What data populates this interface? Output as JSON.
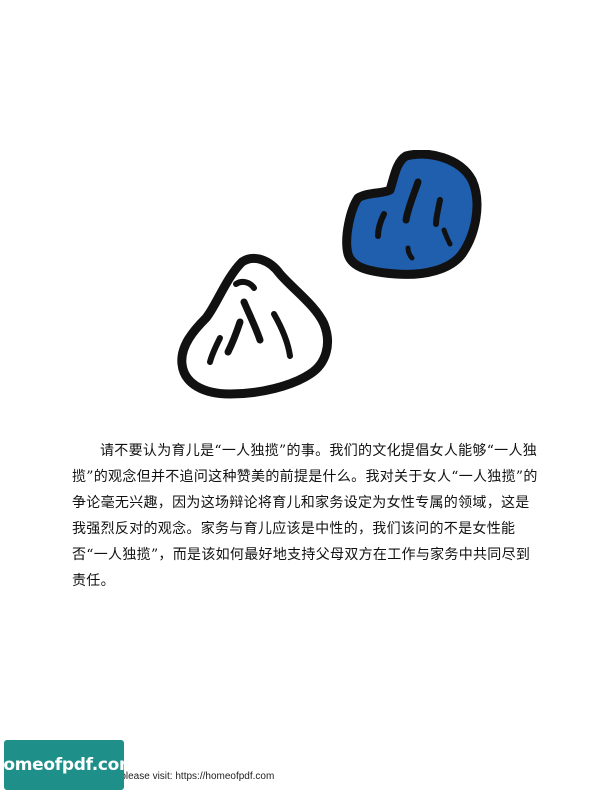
{
  "body": {
    "paragraph": "请不要认为育儿是“一人独揽”的事。我们的文化提倡女人能够“一人独揽”的观念但并不追问这种赞美的前提是什么。我对关于女人“一人独揽”的争论毫无兴趣，因为这场辩论将育儿和家务设定为女性专属的领域，这是我强烈反对的观念。家务与育儿应该是中性的，我们该问的不是女性能否“一人独揽”，而是该如何最好地支持父母双方在工作与家务中共同尽到责任。"
  },
  "footer": {
    "badge": "homeofpdf.com",
    "text": "e please visit: https://homeofpdf.com"
  },
  "colors": {
    "rock_blue": "#1f5fad",
    "outline": "#111111",
    "badge": "#1f8f8a"
  }
}
